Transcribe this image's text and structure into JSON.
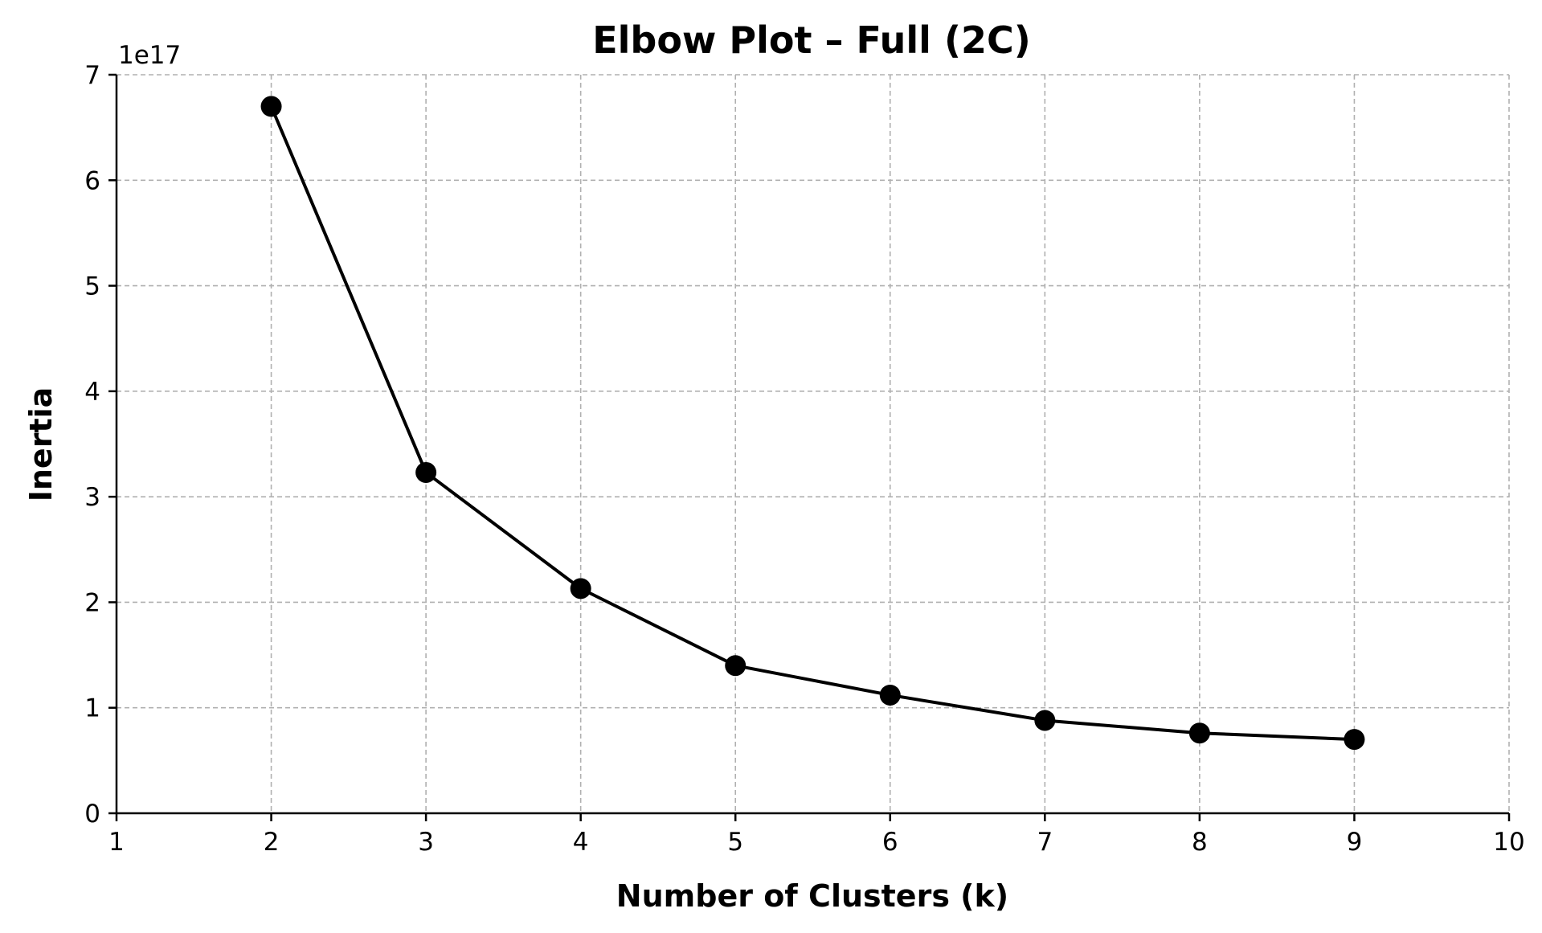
{
  "chart_data": {
    "type": "line",
    "title": "Elbow Plot – Full (2C)",
    "xlabel": "Number of Clusters (k)",
    "ylabel": "Inertia",
    "y_offset_label": "1e17",
    "xlim": [
      1,
      10
    ],
    "ylim": [
      0,
      7
    ],
    "x_ticks": [
      "1",
      "2",
      "3",
      "4",
      "5",
      "6",
      "7",
      "8",
      "9",
      "10"
    ],
    "y_ticks": [
      "0",
      "1",
      "2",
      "3",
      "4",
      "5",
      "6",
      "7"
    ],
    "grid": true,
    "marker": "circle",
    "line_color": "#000000",
    "series": [
      {
        "x": [
          2,
          3,
          4,
          5,
          6,
          7,
          8,
          9
        ],
        "values": [
          6.7,
          3.23,
          2.13,
          1.4,
          1.12,
          0.88,
          0.76,
          0.7
        ]
      }
    ]
  }
}
